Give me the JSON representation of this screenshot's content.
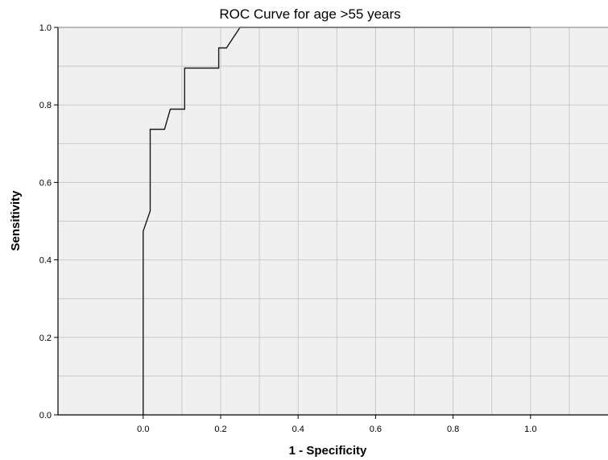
{
  "chart_data": {
    "type": "line",
    "title": "ROC Curve for age >55 years",
    "xlabel": "1 - Specificity",
    "ylabel": "Sensitivity",
    "xlim": [
      -0.22,
      1.2
    ],
    "ylim": [
      0,
      1
    ],
    "x_ticks": [
      "0.0",
      "0.2",
      "0.4",
      "0.6",
      "0.8",
      "1.0"
    ],
    "y_ticks": [
      "0.0",
      "0.2",
      "0.4",
      "0.6",
      "0.8",
      "1.0"
    ],
    "grid": true,
    "background_color": "#f0f0f0",
    "line_color": "#1a1a1a",
    "series": [
      {
        "x": [
          0,
          0,
          0.018,
          0.018,
          0.055,
          0.07,
          0.107,
          0.107,
          0.195,
          0.195,
          0.215,
          0.25,
          1.0
        ],
        "y": [
          0,
          0.474,
          0.526,
          0.737,
          0.737,
          0.789,
          0.789,
          0.895,
          0.895,
          0.947,
          0.947,
          1.0,
          1.0
        ]
      }
    ]
  }
}
